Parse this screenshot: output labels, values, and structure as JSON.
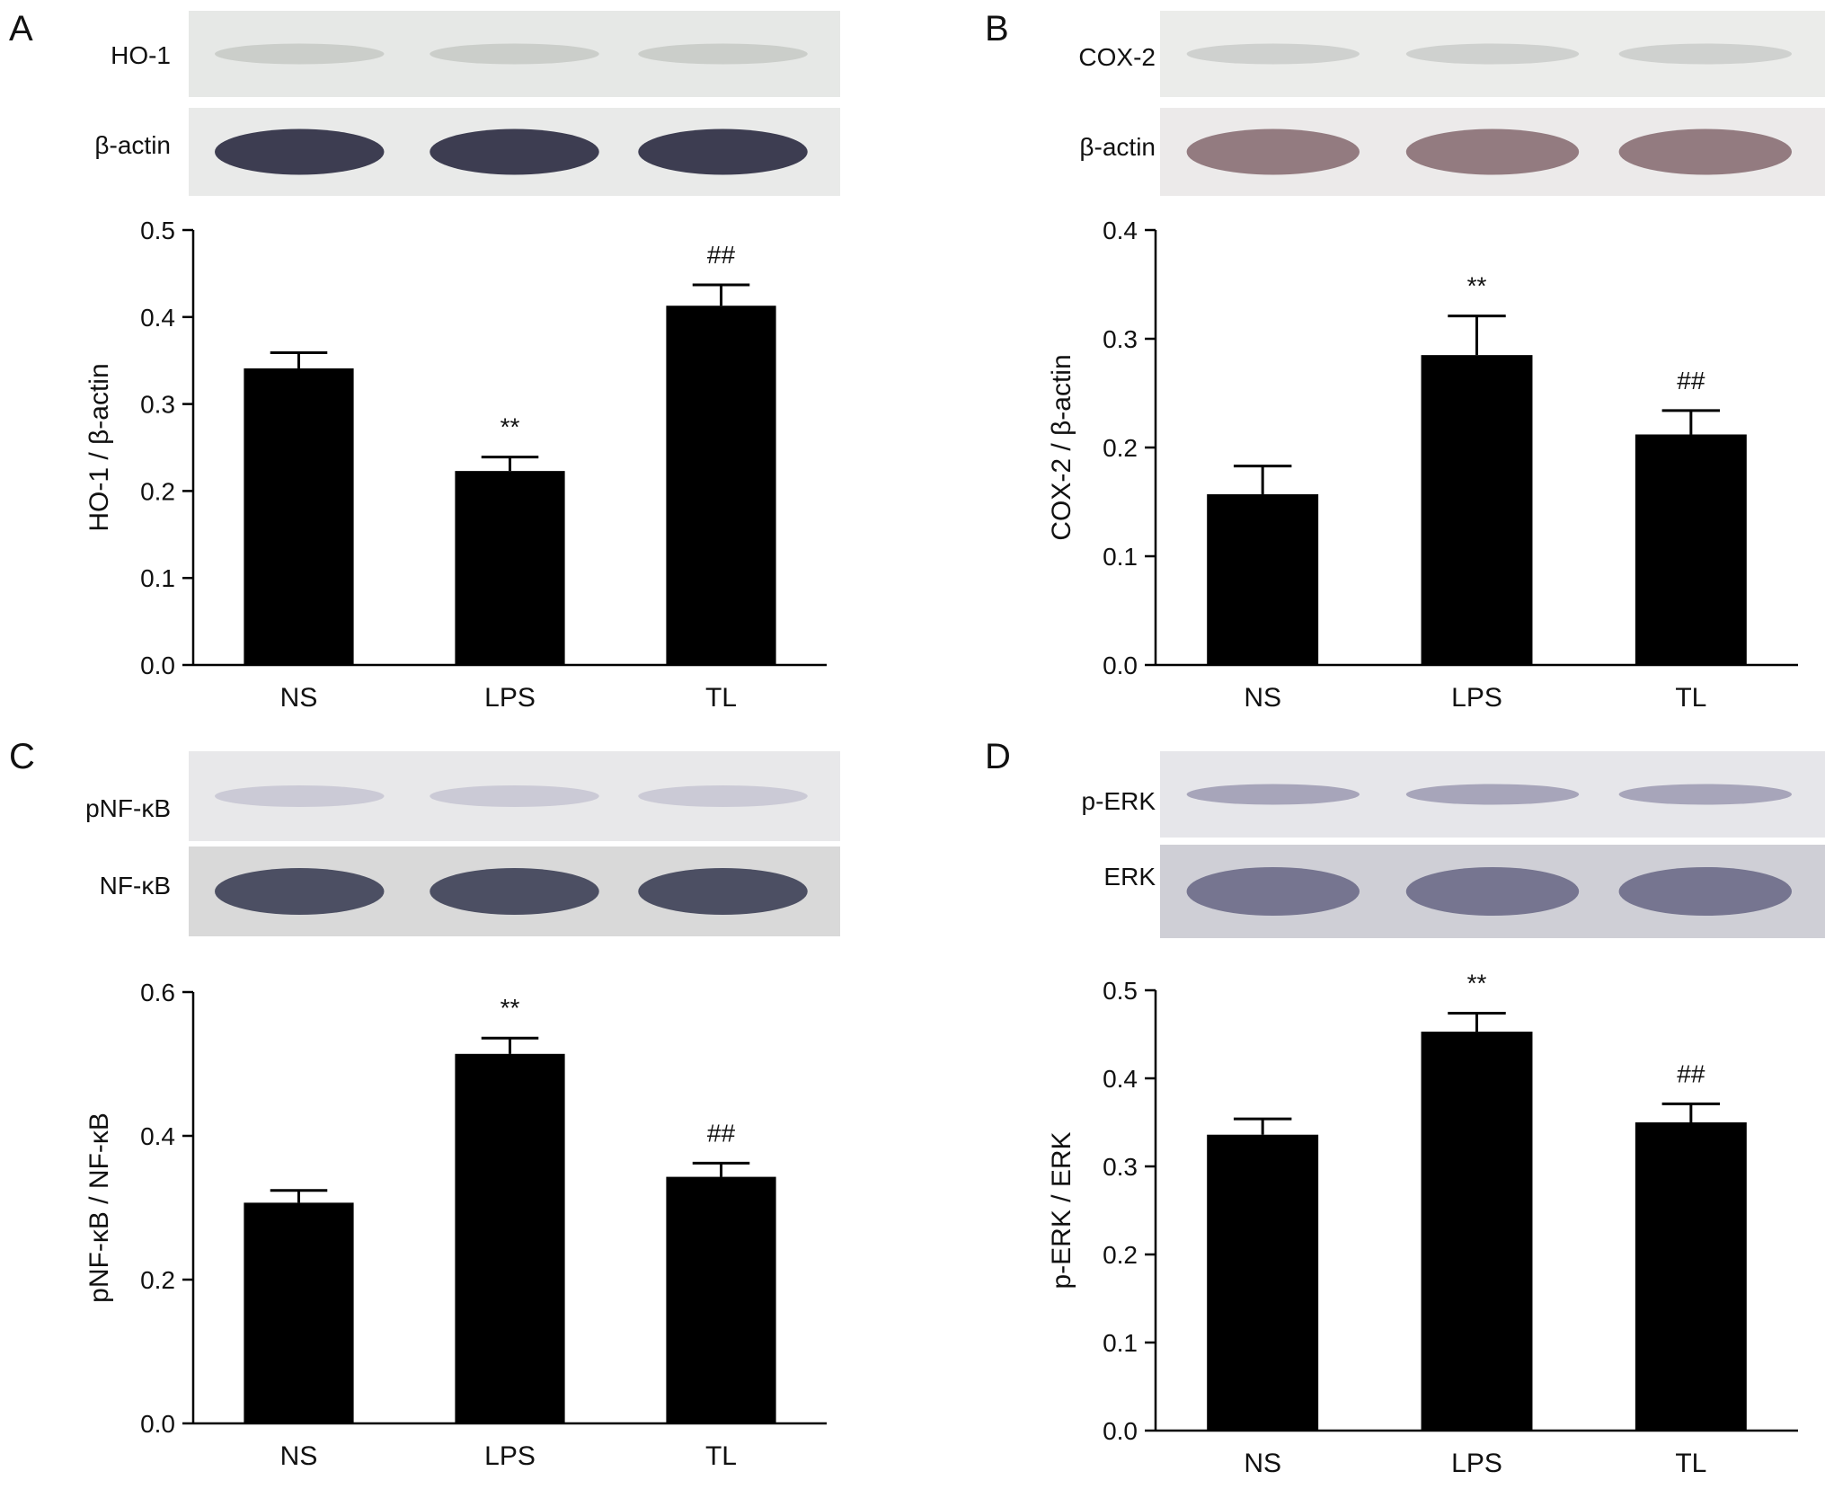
{
  "panels": [
    {
      "letter": "A",
      "blot_top_label": "HO-1",
      "blot_bottom_label": "β-actin",
      "colors": {
        "top_bg": "#e6e8e6",
        "top_band": "#b9bdb8",
        "bottom_bg": "#e9eae9",
        "bottom_band": "#2a2a40"
      }
    },
    {
      "letter": "B",
      "blot_top_label": "COX-2",
      "blot_bottom_label": "β-actin",
      "colors": {
        "top_bg": "#ebecea",
        "top_band": "#bcc0bd",
        "bottom_bg": "#eceaea",
        "bottom_band": "#8a6f74"
      }
    },
    {
      "letter": "C",
      "blot_top_label": "pNF-κB",
      "blot_bottom_label": "NF-κB",
      "colors": {
        "top_bg": "#e8e8ea",
        "top_band": "#b8b6c8",
        "bottom_bg": "#d9d9d9",
        "bottom_band": "#3c3f55"
      }
    },
    {
      "letter": "D",
      "blot_top_label": "p-ERK",
      "blot_bottom_label": "ERK",
      "colors": {
        "top_bg": "#e6e6ea",
        "top_band": "#7d7a99",
        "bottom_bg": "#cfcfd6",
        "bottom_band": "#6c6a88"
      }
    }
  ],
  "chart_data": [
    {
      "type": "bar",
      "categories": [
        "NS",
        "LPS",
        "TL"
      ],
      "values": [
        0.341,
        0.223,
        0.413
      ],
      "errors": [
        0.018,
        0.016,
        0.024
      ],
      "annotations": [
        "",
        "**",
        "##"
      ],
      "ylabel": "HO-1 / β-actin",
      "ylim": [
        0,
        0.5
      ],
      "yticks": [
        "0.0",
        "0.1",
        "0.2",
        "0.3",
        "0.4",
        "0.5"
      ],
      "bar_color": "#000000"
    },
    {
      "type": "bar",
      "categories": [
        "NS",
        "LPS",
        "TL"
      ],
      "values": [
        0.157,
        0.285,
        0.212
      ],
      "errors": [
        0.026,
        0.036,
        0.022
      ],
      "annotations": [
        "",
        "**",
        "##"
      ],
      "ylabel": "COX-2 / β-actin",
      "ylim": [
        0,
        0.4
      ],
      "yticks": [
        "0.0",
        "0.1",
        "0.2",
        "0.3",
        "0.4"
      ],
      "bar_color": "#000000"
    },
    {
      "type": "bar",
      "categories": [
        "NS",
        "LPS",
        "TL"
      ],
      "values": [
        0.307,
        0.514,
        0.343
      ],
      "errors": [
        0.017,
        0.022,
        0.019
      ],
      "annotations": [
        "",
        "**",
        "##"
      ],
      "ylabel": "pNF-κB / NF-κB",
      "ylim": [
        0,
        0.6
      ],
      "yticks": [
        "0.0",
        "0.2",
        "0.4",
        "0.6"
      ],
      "bar_color": "#000000"
    },
    {
      "type": "bar",
      "categories": [
        "NS",
        "LPS",
        "TL"
      ],
      "values": [
        0.336,
        0.453,
        0.35
      ],
      "errors": [
        0.018,
        0.021,
        0.021
      ],
      "annotations": [
        "",
        "**",
        "##"
      ],
      "ylabel": "p-ERK / ERK",
      "ylim": [
        0,
        0.5
      ],
      "yticks": [
        "0.0",
        "0.1",
        "0.2",
        "0.3",
        "0.4",
        "0.5"
      ],
      "bar_color": "#000000"
    }
  ]
}
